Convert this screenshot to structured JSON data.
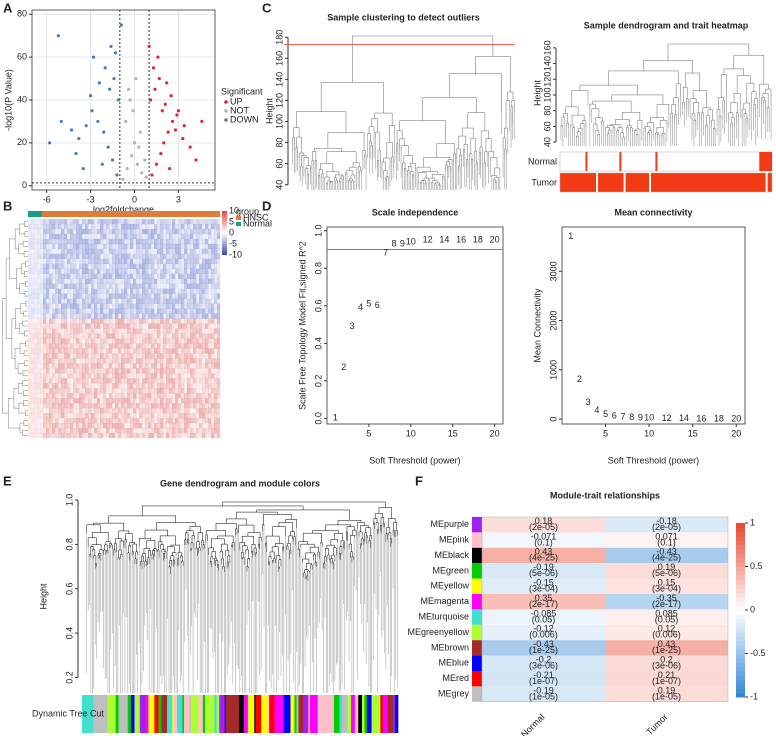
{
  "panel_labels": [
    "A",
    "B",
    "C",
    "D",
    "E",
    "F"
  ],
  "chart_data": [
    {
      "type": "scatter",
      "xlabel": "log2foldchange",
      "ylabel": "-log10(P Value)",
      "legend_title": "Significant",
      "grid": true,
      "xlim": [
        -7,
        5.5
      ],
      "xticks": [
        -6,
        -3,
        0,
        3
      ],
      "ylim": [
        -2,
        82
      ],
      "yticks": [
        0,
        20,
        40,
        60,
        80
      ],
      "thresholds": {
        "x": [
          -1,
          1
        ],
        "y": 1.3
      },
      "series": [
        {
          "name": "UP",
          "color": "#e3262b",
          "x": [
            1.2,
            1.5,
            1.8,
            2.0,
            2.3,
            2.6,
            3.0,
            3.4,
            1.1,
            1.4,
            1.7,
            2.1,
            2.5,
            2.9,
            3.3,
            3.8,
            4.2,
            1.3,
            1.6,
            2.2,
            2.8,
            1.9,
            2.4,
            1.0,
            4.6
          ],
          "values": [
            5,
            10,
            15,
            20,
            25,
            30,
            35,
            28,
            40,
            45,
            50,
            38,
            42,
            33,
            22,
            18,
            12,
            55,
            60,
            48,
            26,
            35,
            8,
            65,
            30
          ]
        },
        {
          "name": "NOT",
          "color": "#b3b3b3",
          "x": [
            -0.8,
            -0.5,
            -0.2,
            0,
            0.2,
            0.5,
            0.8,
            -0.6,
            -0.3,
            0.1,
            0.4,
            0.7,
            -0.1,
            0.3,
            -0.4
          ],
          "values": [
            3,
            8,
            14,
            20,
            10,
            6,
            4,
            30,
            40,
            50,
            25,
            12,
            35,
            18,
            45
          ]
        },
        {
          "name": "DOWN",
          "color": "#3a80c3",
          "x": [
            -1.2,
            -1.5,
            -1.8,
            -2.1,
            -2.5,
            -2.9,
            -3.3,
            -3.8,
            -4.3,
            -5.0,
            -5.8,
            -1.1,
            -1.4,
            -1.7,
            -2.0,
            -2.4,
            -2.8,
            -1.3,
            -1.6,
            -0.9,
            -3.0,
            -4.0,
            -5.2,
            -2.2,
            -3.5
          ],
          "values": [
            5,
            12,
            18,
            25,
            30,
            35,
            28,
            22,
            26,
            30,
            20,
            40,
            50,
            45,
            55,
            48,
            60,
            62,
            65,
            75,
            42,
            15,
            70,
            10,
            8
          ]
        }
      ]
    },
    {
      "type": "heatmap",
      "legend_title": "group",
      "groups": [
        {
          "name": "HNSC",
          "color": "#e07b39"
        },
        {
          "name": "Normal",
          "color": "#1a9e82"
        }
      ],
      "colorbar_ticks": [
        10,
        5,
        0,
        -5,
        -10
      ]
    },
    {
      "type": "dendrogram",
      "panels": [
        {
          "title": "Sample clustering to detect outliers",
          "ylabel": "Height",
          "ylim": [
            35,
            185
          ],
          "yticks": [
            40,
            60,
            80,
            100,
            120,
            140,
            160,
            180
          ],
          "cut_height": 173,
          "cut_color": "#e0554a"
        },
        {
          "title": "Sample dendrogram and trait heatmap",
          "ylabel": "Height",
          "ylim": [
            35,
            170
          ],
          "yticks": [
            40,
            60,
            80,
            100,
            120,
            140,
            160
          ],
          "traits": [
            "Normal",
            "Tumor"
          ],
          "trait_color": "#f23a14"
        }
      ]
    },
    {
      "type": "text-scatter",
      "title": "Scale independence",
      "xlabel": "Soft Threshold (power)",
      "ylabel": "Scale Free Topology Model Fit,signed R^2",
      "color": "#000000",
      "x": [
        1,
        2,
        3,
        4,
        5,
        6,
        7,
        8,
        9,
        10,
        12,
        14,
        16,
        18,
        20
      ],
      "values": [
        0.0,
        0.27,
        0.49,
        0.59,
        0.61,
        0.6,
        0.88,
        0.93,
        0.93,
        0.94,
        0.95,
        0.95,
        0.95,
        0.95,
        0.95
      ],
      "xlim": [
        0,
        21
      ],
      "xticks": [
        5,
        10,
        15,
        20
      ],
      "ylim": [
        -0.03,
        1.02
      ],
      "yticks": [
        {
          "value": 0,
          "label": "0.0"
        },
        0.2,
        0.4,
        0.6,
        0.8,
        {
          "value": 1,
          "label": "1.0"
        }
      ],
      "hline": 0.9,
      "hline_color": "#e0554a"
    },
    {
      "type": "text-scatter",
      "title": "Mean connectivity",
      "xlabel": "Soft Threshold (power)",
      "ylabel": "Mean Connectivity",
      "color": "#000000",
      "x": [
        1,
        2,
        3,
        4,
        5,
        6,
        7,
        8,
        9,
        10,
        12,
        14,
        16,
        18,
        20
      ],
      "values": [
        3700,
        800,
        330,
        170,
        90,
        60,
        40,
        30,
        20,
        15,
        10,
        5,
        4,
        3,
        2
      ],
      "xlim": [
        0,
        21
      ],
      "xticks": [
        5,
        10,
        15,
        20
      ],
      "ylim": [
        -100,
        3900
      ],
      "yticks": [
        0,
        1000,
        2000,
        3000
      ]
    },
    {
      "type": "gene-dendrogram",
      "title": "Gene dendrogram and module colors",
      "ylabel": "Height",
      "strip_label": "Dynamic Tree Cut",
      "ylim": [
        0.13,
        1.0
      ],
      "yticks": [
        0.2,
        0.4,
        0.6,
        0.8,
        {
          "value": 1,
          "label": "1.0"
        }
      ],
      "strip_colors": [
        "#40e0d0",
        "#a52a2a",
        "#adff2f",
        "#ff00ff",
        "#ffc0cb",
        "#a020f0",
        "#ffff00",
        "#000000",
        "#00cd00",
        "#0000ff",
        "#ff0000",
        "#bebebe"
      ]
    },
    {
      "type": "module-heatmap",
      "title": "Module-trait relationships",
      "modules": [
        "MEpurple",
        "MEpink",
        "MEblack",
        "MEgreen",
        "MEyellow",
        "MEmagenta",
        "MEturquoise",
        "MEgreenyellow",
        "MEbrown",
        "MEblue",
        "MEred",
        "MEgrey"
      ],
      "module_colors": [
        "#a020f0",
        "#ffc0cb",
        "#000000",
        "#00cd00",
        "#ffff00",
        "#ff00ff",
        "#40e0d0",
        "#adff2f",
        "#a52a2a",
        "#0000ff",
        "#ff0000",
        "#bebebe"
      ],
      "traits": [
        "Normal",
        "Tumor"
      ],
      "values": [
        [
          0.18,
          -0.18
        ],
        [
          -0.071,
          0.071
        ],
        [
          0.43,
          -0.43
        ],
        [
          -0.19,
          0.19
        ],
        [
          -0.15,
          0.15
        ],
        [
          0.35,
          -0.35
        ],
        [
          -0.085,
          0.085
        ],
        [
          -0.12,
          0.12
        ],
        [
          -0.43,
          0.43
        ],
        [
          -0.2,
          0.2
        ],
        [
          -0.21,
          0.21
        ],
        [
          -0.19,
          0.19
        ]
      ],
      "p_values": [
        [
          "(2e-05)",
          "(2e-05)"
        ],
        [
          "(0.1)",
          "(0.1)"
        ],
        [
          "(4e-25)",
          "(4e-25)"
        ],
        [
          "(5e-06)",
          "(5e-06)"
        ],
        [
          "(3e-04)",
          "(3e-04)"
        ],
        [
          "(2e-17)",
          "(2e-17)"
        ],
        [
          "(0.05)",
          "(0.05)"
        ],
        [
          "(0.006)",
          "(0.006)"
        ],
        [
          "(1e-25)",
          "(1e-25)"
        ],
        [
          "(3e-06)",
          "(3e-06)"
        ],
        [
          "(1e-07)",
          "(1e-07)"
        ],
        [
          "(1e-05)",
          "(1e-05)"
        ]
      ],
      "clim": [
        -1,
        1
      ],
      "colorbar_ticks": [
        1,
        0.5,
        0,
        -0.5,
        -1
      ],
      "low_color": "#2f86d6",
      "high_color": "#e8472f"
    }
  ]
}
